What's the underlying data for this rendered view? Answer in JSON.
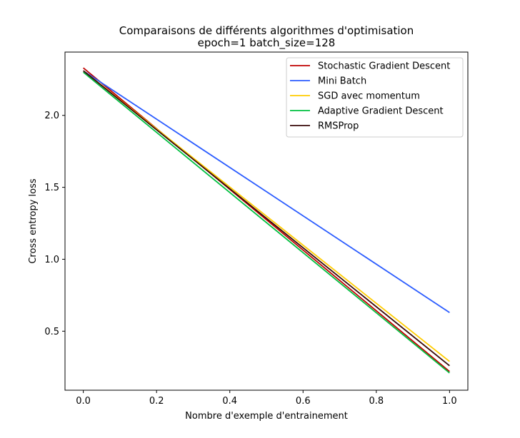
{
  "chart_data": {
    "type": "line",
    "title": "Comparaisons de différents algorithmes d'optimisation",
    "subtitle": "epoch=1 batch_size=128",
    "xlabel": "Nombre d'exemple d'entrainement",
    "ylabel": "Cross entropy loss",
    "xlim": [
      -0.05,
      1.05
    ],
    "ylim": [
      0.09,
      2.44
    ],
    "x_ticks": [
      0.0,
      0.2,
      0.4,
      0.6,
      0.8,
      1.0
    ],
    "x_tick_labels": [
      "0.0",
      "0.2",
      "0.4",
      "0.6",
      "0.8",
      "1.0"
    ],
    "y_ticks": [
      0.5,
      1.0,
      1.5,
      2.0
    ],
    "y_tick_labels": [
      "0.5",
      "1.0",
      "1.5",
      "2.0"
    ],
    "grid": false,
    "legend_position": "top-right",
    "x": [
      0.0,
      1.0
    ],
    "series": [
      {
        "name": "Stochastic Gradient Descent",
        "color": "#c00000",
        "values": [
          2.33,
          0.22
        ]
      },
      {
        "name": "Mini Batch",
        "color": "#2b5cff",
        "values": [
          2.31,
          0.63
        ]
      },
      {
        "name": "SGD avec momentum",
        "color": "#ffcc00",
        "values": [
          2.31,
          0.29
        ]
      },
      {
        "name": "Adaptive Gradient Descent",
        "color": "#00c040",
        "values": [
          2.3,
          0.21
        ]
      },
      {
        "name": "RMSProp",
        "color": "#3a0a0a",
        "values": [
          2.31,
          0.26
        ]
      }
    ]
  }
}
